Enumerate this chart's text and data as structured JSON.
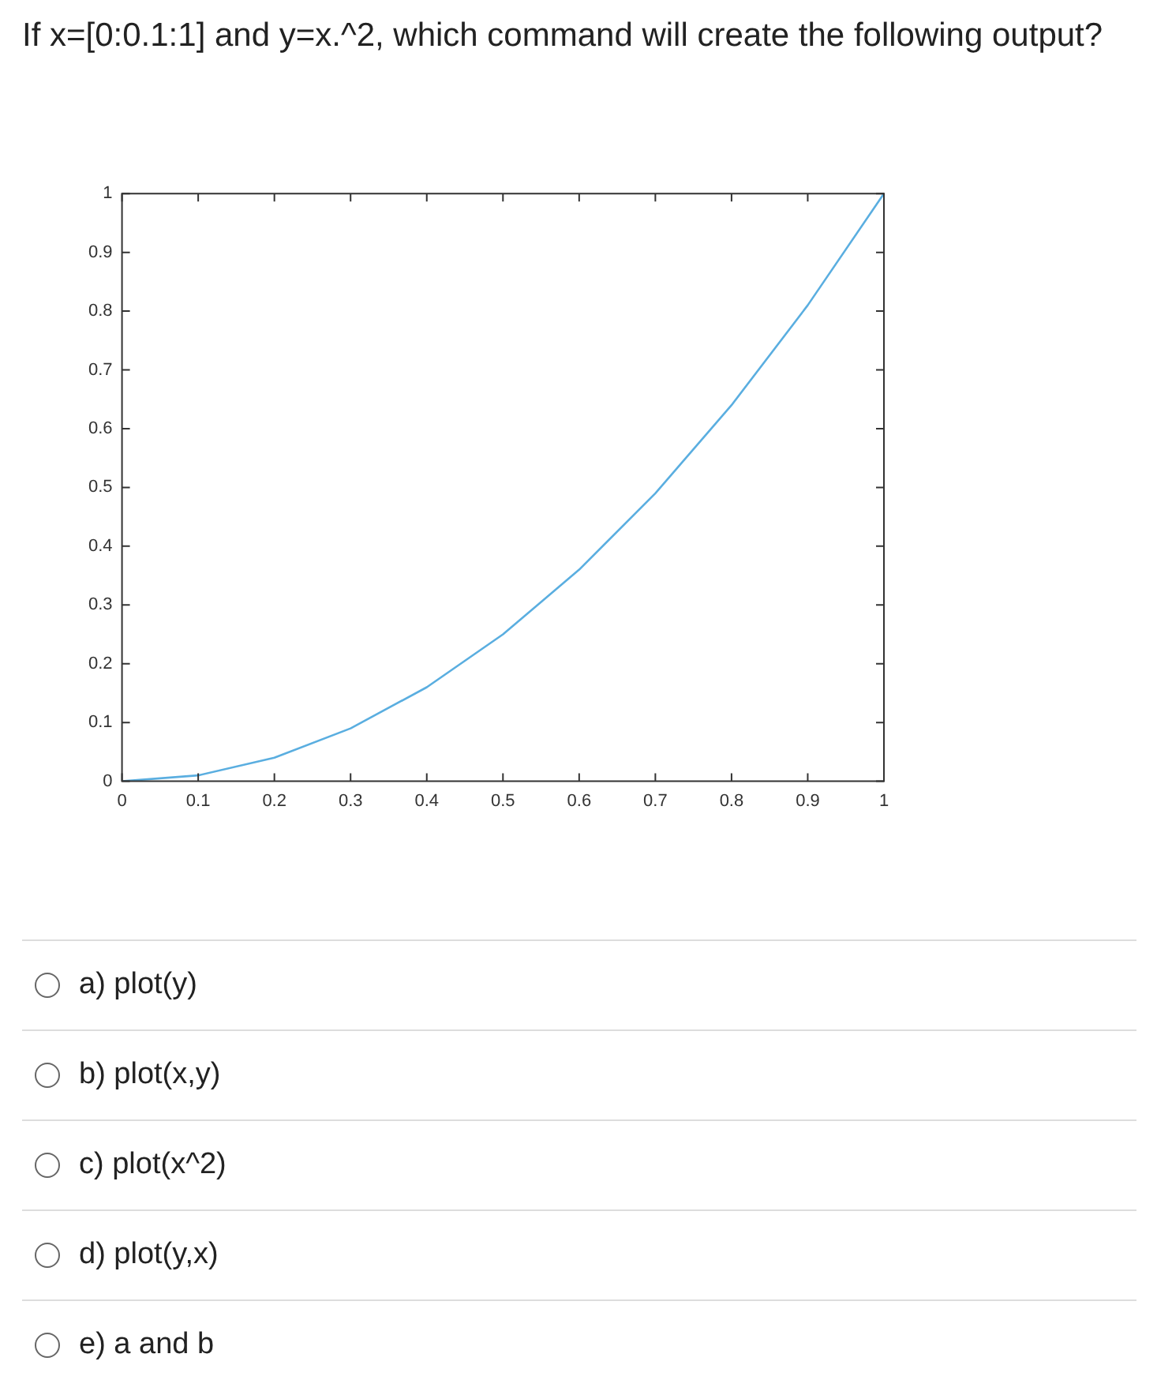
{
  "chart_data": {
    "type": "line",
    "title": "If x=[0:0.1:1] and y=x.^2, which command will create the following output?",
    "x": [
      0,
      0.1,
      0.2,
      0.3,
      0.4,
      0.5,
      0.6,
      0.7,
      0.8,
      0.9,
      1
    ],
    "series": [
      {
        "color": "#5aaee0",
        "values": [
          0,
          0.01,
          0.04,
          0.09,
          0.16,
          0.25,
          0.36,
          0.49,
          0.64,
          0.81,
          1
        ]
      }
    ],
    "xlim": [
      0,
      1
    ],
    "xticks": [
      0,
      0.1,
      0.2,
      0.3,
      0.4,
      0.5,
      0.6,
      0.7,
      0.8,
      0.9,
      1
    ],
    "ylim": [
      0,
      1
    ],
    "yticks": [
      0,
      0.1,
      0.2,
      0.3,
      0.4,
      0.5,
      0.6,
      0.7,
      0.8,
      0.9,
      1
    ],
    "marker": "none",
    "line_style": "solid",
    "annotations": [
      "a) plot(y)",
      "b) plot(x,y)",
      "c) plot(x^2)",
      "d) plot(y,x)",
      "e) a and b"
    ]
  }
}
